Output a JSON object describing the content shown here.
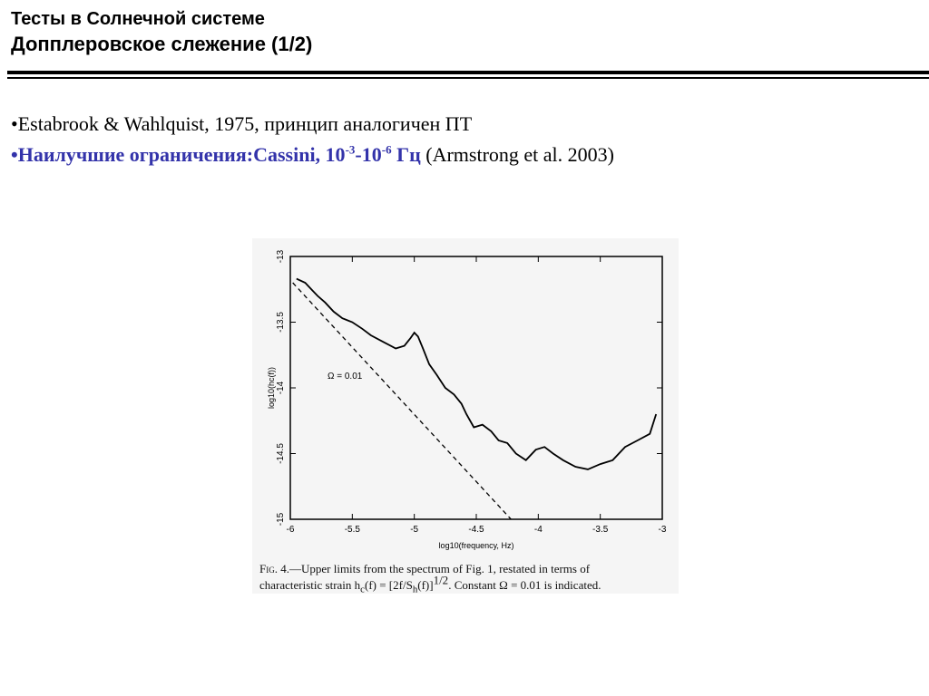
{
  "slide": {
    "title_line1": "Тесты в Солнечной системе",
    "title_line2": "Допплеровское слежение (1/2)"
  },
  "bullets": [
    {
      "prefix": "•",
      "text": "Estabrook & Wahlquist, 1975, принцип аналогичен ПТ"
    },
    {
      "prefix": "•",
      "bold_text": "Наилучшие ограничения:Cassini, 10",
      "exp1": "-3",
      "mid": "-10",
      "exp2": "-6",
      "bold_tail": " Гц",
      "normal_text": " (Armstrong et al. 2003)"
    }
  ],
  "figure": {
    "caption_line1_prefix": "Fig. 4.",
    "caption_line1_rest": "—Upper limits from the spectrum of Fig. 1, restated in terms of",
    "caption_line2": "characteristic strain h",
    "caption_line2_sub": "c",
    "caption_line2_rest": "(f) = [2f/S",
    "caption_line2_sub2": "h",
    "caption_line2_rest2": "(f)]",
    "caption_line2_sup": "1/2",
    "caption_line2_end": ". Constant Ω = 0.01 is indicated."
  },
  "chart_data": {
    "type": "line",
    "xlabel": "log10(frequency, Hz)",
    "ylabel": "log10(hc(f))",
    "xlim": [
      -6,
      -3
    ],
    "ylim": [
      -15,
      -13
    ],
    "x_ticks": [
      "-6",
      "-5.5",
      "-5",
      "-4.5",
      "-4",
      "-3.5",
      "-3"
    ],
    "y_ticks": [
      "-13",
      "-13.5",
      "-14",
      "-14.5",
      "-15"
    ],
    "annotation": "Ω = 0.01",
    "series": [
      {
        "style": "solid",
        "x": [
          -5.95,
          -5.88,
          -5.82,
          -5.78,
          -5.72,
          -5.65,
          -5.58,
          -5.5,
          -5.42,
          -5.35,
          -5.25,
          -5.15,
          -5.08,
          -5.03,
          -5.0,
          -4.97,
          -4.93,
          -4.88,
          -4.82,
          -4.75,
          -4.68,
          -4.62,
          -4.58,
          -4.52,
          -4.45,
          -4.38,
          -4.32,
          -4.25,
          -4.18,
          -4.1,
          -4.02,
          -3.95,
          -3.88,
          -3.8,
          -3.7,
          -3.6,
          -3.5,
          -3.4,
          -3.3,
          -3.2,
          -3.1,
          -3.05
        ],
        "y": [
          -13.17,
          -13.2,
          -13.26,
          -13.3,
          -13.35,
          -13.42,
          -13.47,
          -13.5,
          -13.55,
          -13.6,
          -13.65,
          -13.7,
          -13.68,
          -13.62,
          -13.58,
          -13.61,
          -13.7,
          -13.82,
          -13.9,
          -14.0,
          -14.05,
          -14.12,
          -14.2,
          -14.3,
          -14.28,
          -14.33,
          -14.4,
          -14.42,
          -14.5,
          -14.55,
          -14.47,
          -14.45,
          -14.5,
          -14.55,
          -14.6,
          -14.62,
          -14.58,
          -14.55,
          -14.45,
          -14.4,
          -14.35,
          -14.2
        ]
      },
      {
        "style": "dashed",
        "x": [
          -5.98,
          -4.22
        ],
        "y": [
          -13.2,
          -15.0
        ]
      }
    ]
  }
}
